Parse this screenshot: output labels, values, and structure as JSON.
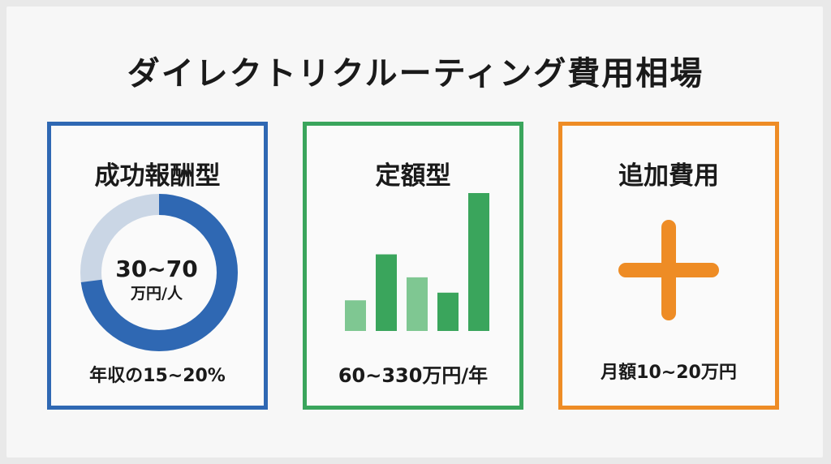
{
  "title": "ダイレクトリクルーティング費用相場",
  "colors": {
    "blue": "#2f68b3",
    "blue_light": "#cad6e5",
    "green": "#3aa55c",
    "green_light": "#7fc792",
    "orange": "#ee8c25"
  },
  "cards": [
    {
      "title": "成功報酬型",
      "center_value": "30~70",
      "center_unit": "万円/人",
      "footer": "年収の15~20%",
      "donut_fraction": 0.73
    },
    {
      "title": "定額型",
      "footer": "60~330万円/年",
      "bars": [
        0.2,
        0.5,
        0.35,
        0.25,
        0.9
      ]
    },
    {
      "title": "追加費用",
      "icon": "plus-icon",
      "footer": "月額10~20万円"
    }
  ]
}
